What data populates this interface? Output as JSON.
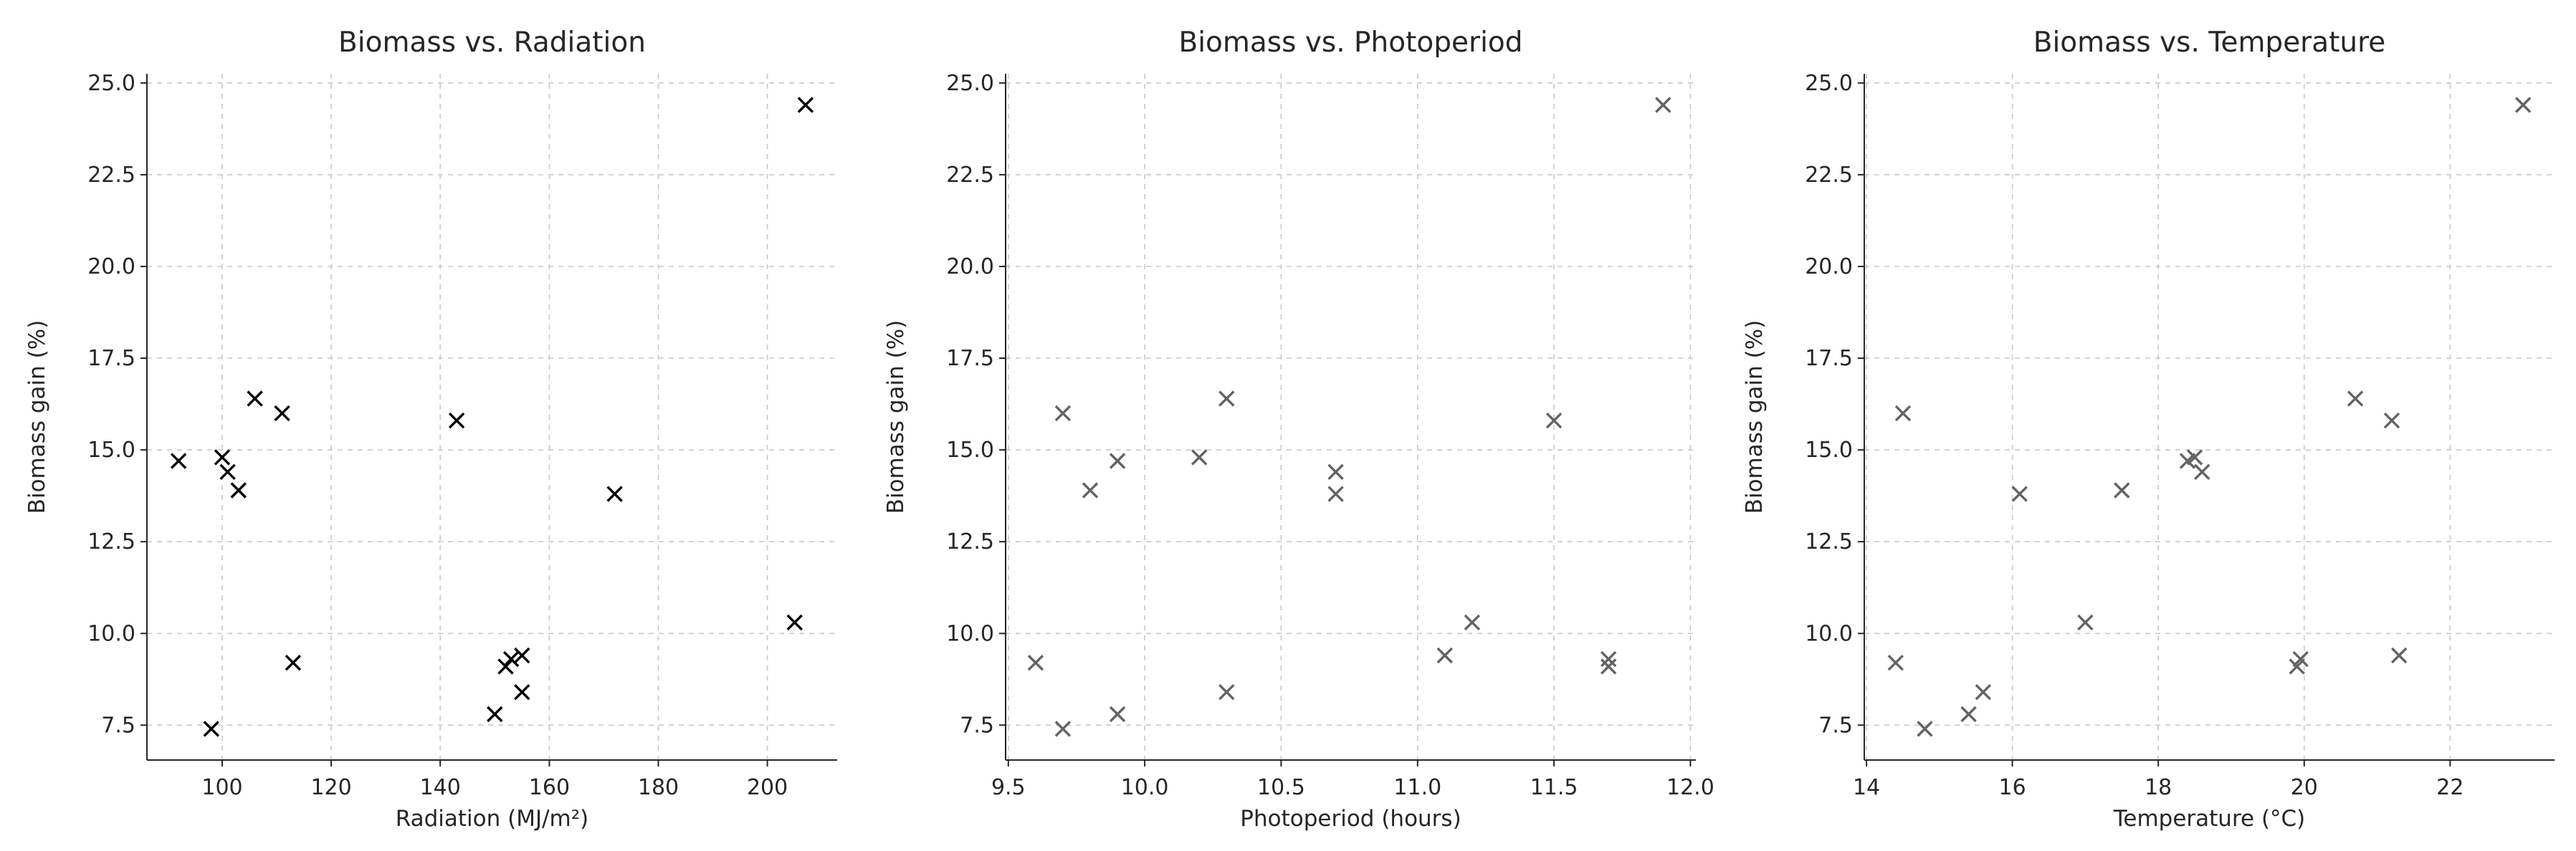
{
  "page": {
    "background": "#ffffff",
    "text_color": "#262626",
    "spine_color": "#262626",
    "grid_color": "#c8c8c8"
  },
  "chart_data": [
    {
      "type": "scatter",
      "title": "Biomass vs. Radiation",
      "xlabel": "Radiation (MJ/m²)",
      "ylabel": "Biomass gain (%)",
      "marker": "x",
      "marker_color": "#000000",
      "grid": true,
      "grid_color": "#c8c8c8",
      "x": [
        92,
        98,
        100,
        101,
        103,
        106,
        111,
        113,
        143,
        150,
        152,
        153,
        155,
        155,
        172,
        205,
        207
      ],
      "y": [
        14.7,
        7.4,
        14.8,
        14.4,
        13.9,
        16.4,
        16.0,
        9.2,
        15.8,
        7.8,
        9.1,
        9.3,
        9.4,
        8.4,
        13.8,
        10.3,
        24.4
      ],
      "xlim": [
        86.2,
        212.8
      ],
      "ylim": [
        6.55,
        25.25
      ],
      "xticks": [
        100,
        120,
        140,
        160,
        180,
        200
      ],
      "xtick_labels": [
        "100",
        "120",
        "140",
        "160",
        "180",
        "200"
      ],
      "yticks": [
        7.5,
        10.0,
        12.5,
        15.0,
        17.5,
        20.0,
        22.5,
        25.0
      ],
      "ytick_labels": [
        "7.5",
        "10.0",
        "12.5",
        "15.0",
        "17.5",
        "20.0",
        "22.5",
        "25.0"
      ]
    },
    {
      "type": "scatter",
      "title": "Biomass vs. Photoperiod",
      "xlabel": "Photoperiod (hours)",
      "ylabel": "Biomass gain (%)",
      "marker": "x",
      "marker_color": "#636363",
      "grid": true,
      "grid_color": "#c8c8c8",
      "x": [
        9.9,
        9.7,
        10.2,
        10.7,
        9.8,
        10.3,
        9.7,
        9.6,
        11.5,
        9.9,
        11.7,
        11.7,
        11.1,
        10.3,
        10.7,
        11.2,
        11.9
      ],
      "y": [
        14.7,
        7.4,
        14.8,
        14.4,
        13.9,
        16.4,
        16.0,
        9.2,
        15.8,
        7.8,
        9.1,
        9.3,
        9.4,
        8.4,
        13.8,
        10.3,
        24.4
      ],
      "xlim": [
        9.49,
        12.02
      ],
      "ylim": [
        6.55,
        25.25
      ],
      "xticks": [
        9.5,
        10.0,
        10.5,
        11.0,
        11.5,
        12.0
      ],
      "xtick_labels": [
        "9.5",
        "10.0",
        "10.5",
        "11.0",
        "11.5",
        "12.0"
      ],
      "yticks": [
        7.5,
        10.0,
        12.5,
        15.0,
        17.5,
        20.0,
        22.5,
        25.0
      ],
      "ytick_labels": [
        "7.5",
        "10.0",
        "12.5",
        "15.0",
        "17.5",
        "20.0",
        "22.5",
        "25.0"
      ]
    },
    {
      "type": "scatter",
      "title": "Biomass vs. Temperature",
      "xlabel": "Temperature (°C)",
      "ylabel": "Biomass gain (%)",
      "marker": "x",
      "marker_color": "#636363",
      "grid": true,
      "grid_color": "#c8c8c8",
      "x": [
        18.4,
        14.8,
        18.5,
        18.6,
        17.5,
        20.7,
        14.5,
        14.4,
        21.2,
        15.4,
        19.9,
        19.95,
        21.3,
        15.6,
        16.1,
        17.0,
        23.0
      ],
      "y": [
        14.7,
        7.4,
        14.8,
        14.4,
        13.9,
        16.4,
        16.0,
        9.2,
        15.8,
        7.8,
        9.1,
        9.3,
        9.4,
        8.4,
        13.8,
        10.3,
        24.4
      ],
      "xlim": [
        13.97,
        23.43
      ],
      "ylim": [
        6.55,
        25.25
      ],
      "xticks": [
        14,
        16,
        18,
        20,
        22
      ],
      "xtick_labels": [
        "14",
        "16",
        "18",
        "20",
        "22"
      ],
      "yticks": [
        7.5,
        10.0,
        12.5,
        15.0,
        17.5,
        20.0,
        22.5,
        25.0
      ],
      "ytick_labels": [
        "7.5",
        "10.0",
        "12.5",
        "15.0",
        "17.5",
        "20.0",
        "22.5",
        "25.0"
      ]
    }
  ]
}
